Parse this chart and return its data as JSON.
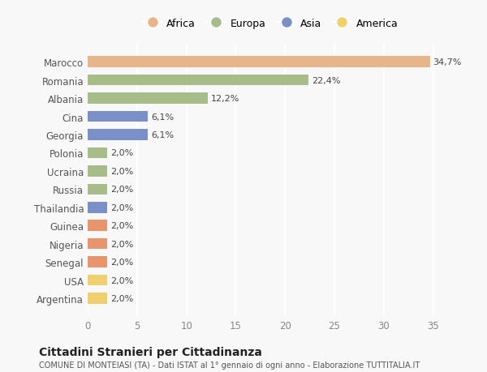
{
  "countries": [
    "Argentina",
    "USA",
    "Senegal",
    "Nigeria",
    "Guinea",
    "Thailandia",
    "Russia",
    "Ucraina",
    "Polonia",
    "Georgia",
    "Cina",
    "Albania",
    "Romania",
    "Marocco"
  ],
  "values": [
    2.0,
    2.0,
    2.0,
    2.0,
    2.0,
    2.0,
    2.0,
    2.0,
    2.0,
    6.1,
    6.1,
    12.2,
    22.4,
    34.7
  ],
  "labels": [
    "2,0%",
    "2,0%",
    "2,0%",
    "2,0%",
    "2,0%",
    "2,0%",
    "2,0%",
    "2,0%",
    "2,0%",
    "6,1%",
    "6,1%",
    "12,2%",
    "22,4%",
    "34,7%"
  ],
  "colors": [
    "#f0cf6e",
    "#f0cf6e",
    "#e8956e",
    "#e8956e",
    "#e8956e",
    "#7b8fc9",
    "#a8bc8a",
    "#a8bc8a",
    "#a8bc8a",
    "#7b8fc9",
    "#7b8fc9",
    "#a8bc8a",
    "#a8bc8a",
    "#e8b48a"
  ],
  "legend_labels": [
    "Africa",
    "Europa",
    "Asia",
    "America"
  ],
  "legend_colors": [
    "#e8b48a",
    "#a8bc8a",
    "#7b8fc9",
    "#f0cf6e"
  ],
  "title": "Cittadini Stranieri per Cittadinanza",
  "subtitle": "COMUNE DI MONTEIASI (TA) - Dati ISTAT al 1° gennaio di ogni anno - Elaborazione TUTTITALIA.IT",
  "xlim": [
    0,
    37
  ],
  "background_color": "#f8f8f8",
  "grid_color": "#ffffff",
  "bar_height": 0.6
}
